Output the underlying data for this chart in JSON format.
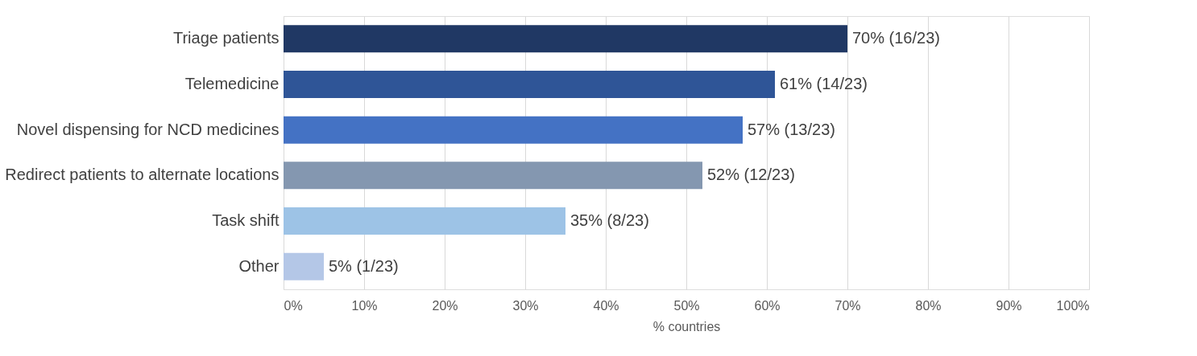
{
  "chart_data": {
    "type": "bar",
    "orientation": "horizontal",
    "xlabel": "% countries",
    "categories": [
      "Triage patients",
      "Telemedicine",
      "Novel dispensing for NCD medicines",
      "Redirect patients to alternate locations",
      "Task shift",
      "Other"
    ],
    "values": [
      70,
      61,
      57,
      52,
      35,
      5
    ],
    "colors": [
      "#203864",
      "#2f5597",
      "#4472c4",
      "#8497b0",
      "#9dc3e6",
      "#b4c7e7"
    ],
    "value_labels": [
      "70% (16/23)",
      "61% (14/23)",
      "57% (13/23)",
      "52% (12/23)",
      "35% (8/23)",
      "5% (1/23)"
    ],
    "xlim": [
      0,
      100
    ],
    "xticks": [
      {
        "value": 0,
        "label": "0%"
      },
      {
        "value": 10,
        "label": "10%"
      },
      {
        "value": 20,
        "label": "20%"
      },
      {
        "value": 30,
        "label": "30%"
      },
      {
        "value": 40,
        "label": "40%"
      },
      {
        "value": 50,
        "label": "50%"
      },
      {
        "value": 60,
        "label": "60%"
      },
      {
        "value": 70,
        "label": "70%"
      },
      {
        "value": 80,
        "label": "80%"
      },
      {
        "value": 90,
        "label": "90%"
      },
      {
        "value": 100,
        "label": "100%"
      }
    ],
    "grid": "x"
  }
}
